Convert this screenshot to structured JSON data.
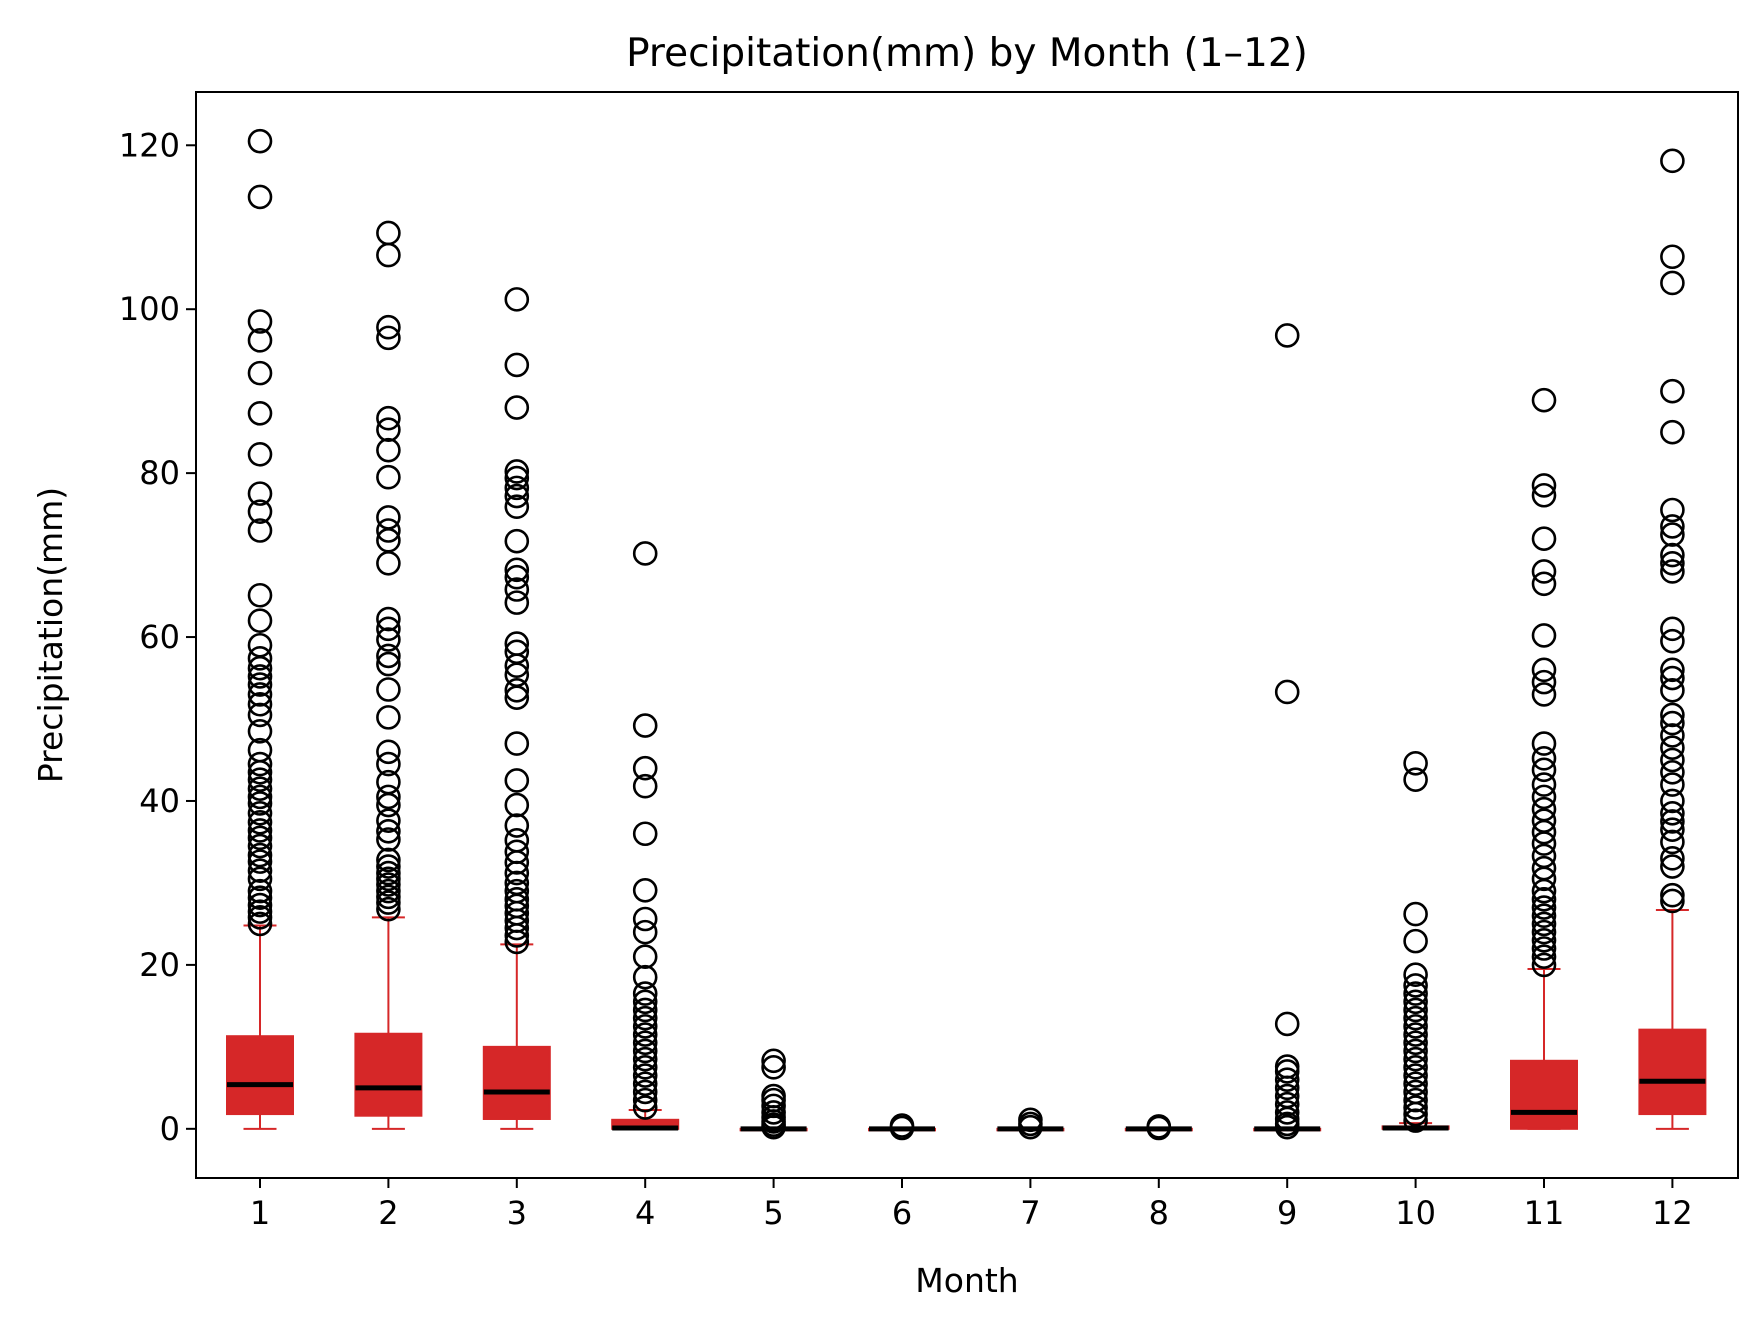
{
  "chart_data": {
    "type": "box",
    "title": "Precipitation(mm) by Month (1–12)",
    "xlabel": "Month",
    "ylabel": "Precipitation(mm)",
    "categories": [
      "1",
      "2",
      "3",
      "4",
      "5",
      "6",
      "7",
      "8",
      "9",
      "10",
      "11",
      "12"
    ],
    "ylim": [
      -6,
      126.5
    ],
    "yticks": [
      0,
      20,
      40,
      60,
      80,
      100,
      120
    ],
    "grid": false,
    "colors": {
      "box": "#d62728",
      "median": "#000000",
      "outlier": "#000000"
    },
    "boxes": [
      {
        "month": "1",
        "whisker_low": 0,
        "q1": 1.8,
        "median": 5.4,
        "q3": 11.3,
        "whisker_high": 24.8,
        "outliers": [
          25,
          25.8,
          26.5,
          27.3,
          28.2,
          29,
          30.5,
          31.5,
          32.6,
          33.4,
          34.5,
          35.5,
          36.4,
          37.4,
          38.5,
          39.7,
          40.5,
          41.5,
          42.6,
          43.5,
          44.5,
          46.2,
          48.5,
          50.5,
          51.8,
          53,
          54.2,
          55.2,
          56.2,
          57.4,
          59,
          62,
          65.1,
          73,
          75.3,
          77.5,
          82.3,
          87.3,
          92.2,
          96.2,
          98.5,
          113.7,
          120.5
        ]
      },
      {
        "month": "2",
        "whisker_low": 0,
        "q1": 1.6,
        "median": 5.0,
        "q3": 11.6,
        "whisker_high": 25.8,
        "outliers": [
          26.8,
          27.6,
          28.3,
          29,
          29.8,
          30.5,
          31.2,
          32,
          32.8,
          35.3,
          36.3,
          37.6,
          39.5,
          40.5,
          42.3,
          44.5,
          46,
          50.2,
          53.6,
          56.7,
          57.7,
          59.7,
          61,
          62.2,
          69,
          71.8,
          73,
          74.6,
          79.5,
          82.8,
          85.3,
          86.7,
          96.5,
          97.8,
          106.6,
          109.3
        ]
      },
      {
        "month": "3",
        "whisker_low": 0,
        "q1": 1.2,
        "median": 4.5,
        "q3": 10.0,
        "whisker_high": 22.5,
        "outliers": [
          22.8,
          23.6,
          24.5,
          25.4,
          26.3,
          27.2,
          28,
          29,
          30,
          31.2,
          32.5,
          33.8,
          35.2,
          37,
          39.5,
          42.5,
          47,
          52.6,
          53.5,
          55.4,
          56.5,
          58.2,
          59.2,
          64.2,
          65.8,
          67.3,
          68.2,
          71.7,
          75.9,
          77.2,
          78.2,
          79.4,
          80.2,
          88,
          93.2,
          101.2
        ]
      },
      {
        "month": "4",
        "whisker_low": 0,
        "q1": 0,
        "median": 0.1,
        "q3": 1.1,
        "whisker_high": 2.3,
        "outliers": [
          2.6,
          3.5,
          4.5,
          5.5,
          6.5,
          7.5,
          8.5,
          9.5,
          10.5,
          11.5,
          12.5,
          13.5,
          14.5,
          15.5,
          16.5,
          18.5,
          21,
          24,
          25.6,
          29.1,
          36,
          41.8,
          44,
          49.2,
          70.2
        ]
      },
      {
        "month": "5",
        "whisker_low": 0,
        "q1": 0,
        "median": 0,
        "q3": 0,
        "whisker_high": 0,
        "outliers": [
          0.2,
          0.5,
          0.9,
          1.4,
          2,
          2.8,
          3.5,
          4,
          7.5,
          8.3
        ]
      },
      {
        "month": "6",
        "whisker_low": 0,
        "q1": 0,
        "median": 0,
        "q3": 0,
        "whisker_high": 0,
        "outliers": [
          0.1,
          0.4
        ]
      },
      {
        "month": "7",
        "whisker_low": 0,
        "q1": 0,
        "median": 0,
        "q3": 0,
        "whisker_high": 0,
        "outliers": [
          0.2,
          0.6,
          1.1
        ]
      },
      {
        "month": "8",
        "whisker_low": 0,
        "q1": 0,
        "median": 0,
        "q3": 0,
        "whisker_high": 0,
        "outliers": [
          0.1,
          0.3
        ]
      },
      {
        "month": "9",
        "whisker_low": 0,
        "q1": 0,
        "median": 0,
        "q3": 0,
        "whisker_high": 0,
        "outliers": [
          0.2,
          0.6,
          1.2,
          2,
          3,
          4,
          5,
          6,
          7,
          7.6,
          12.8,
          53.3,
          96.8
        ]
      },
      {
        "month": "10",
        "whisker_low": 0,
        "q1": 0,
        "median": 0.1,
        "q3": 0.3,
        "whisker_high": 0.7,
        "outliers": [
          1,
          1.8,
          2.6,
          3.5,
          4.5,
          5.5,
          6.5,
          7.5,
          8.5,
          9.5,
          10.5,
          11.5,
          12.5,
          13.5,
          14.5,
          15.5,
          16.5,
          17.5,
          18.8,
          22.9,
          26.2,
          42.6,
          44.6
        ]
      },
      {
        "month": "11",
        "whisker_low": 0,
        "q1": 0,
        "median": 2.0,
        "q3": 8.3,
        "whisker_high": 19.5,
        "outliers": [
          20,
          21,
          22,
          23,
          24,
          25,
          26,
          27,
          28,
          29,
          30.5,
          31.8,
          33.3,
          34.8,
          36.2,
          37.6,
          39,
          40.5,
          42,
          43.8,
          45.2,
          47,
          53,
          54.5,
          56,
          60.2,
          66.5,
          68,
          72,
          77.3,
          78.5,
          88.9
        ]
      },
      {
        "month": "12",
        "whisker_low": 0,
        "q1": 1.8,
        "median": 5.8,
        "q3": 12.1,
        "whisker_high": 26.7,
        "outliers": [
          27.8,
          28.5,
          32,
          33,
          35,
          36.5,
          37.5,
          38.5,
          40,
          42,
          43.5,
          45,
          46.5,
          48,
          49.5,
          50.5,
          53.5,
          55,
          56,
          59.5,
          61,
          68,
          69,
          70,
          72.5,
          73.5,
          75.5,
          85,
          90,
          103.2,
          106.4,
          118.1
        ]
      }
    ]
  }
}
